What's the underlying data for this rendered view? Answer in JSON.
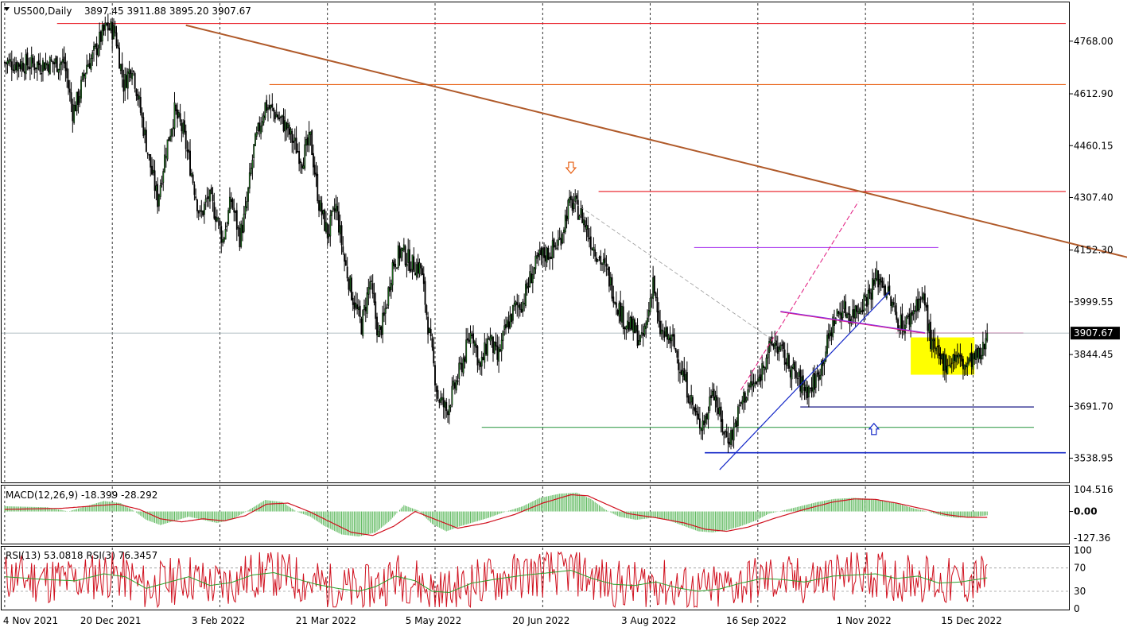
{
  "header": {
    "symbol": "US500,Daily",
    "ohlc": "3897.45 3911.88 3895.20 3907.67"
  },
  "chart_data": {
    "type": "candlestick",
    "x_ticks": [
      "4 Nov 2021",
      "20 Dec 2021",
      "3 Feb 2022",
      "21 Mar 2022",
      "5 May 2022",
      "20 Jun 2022",
      "3 Aug 2022",
      "16 Sep 2022",
      "1 Nov 2022",
      "15 Dec 2022"
    ],
    "price_axis": {
      "ticks": [
        4768.0,
        4612.9,
        4460.15,
        4307.4,
        4152.3,
        3999.55,
        3844.45,
        3691.7,
        3538.95
      ],
      "tick_labels": [
        "4768.00",
        "4612.90",
        "4460.15",
        "4307.40",
        "4152.30",
        "3999.55",
        "3844.45",
        "3691.70",
        "3538.95"
      ],
      "range": [
        3470,
        4880
      ],
      "current_label": "3907.67",
      "current_value": 3907.67
    },
    "price_key_points": [
      [
        0,
        4705
      ],
      [
        20,
        4700
      ],
      [
        42,
        4705
      ],
      [
        48,
        4560
      ],
      [
        52,
        4600
      ],
      [
        58,
        4700
      ],
      [
        62,
        4720
      ],
      [
        68,
        4780
      ],
      [
        72,
        4810
      ],
      [
        78,
        4795
      ],
      [
        84,
        4640
      ],
      [
        90,
        4700
      ],
      [
        96,
        4560
      ],
      [
        102,
        4420
      ],
      [
        108,
        4300
      ],
      [
        114,
        4450
      ],
      [
        120,
        4560
      ],
      [
        126,
        4500
      ],
      [
        132,
        4380
      ],
      [
        138,
        4250
      ],
      [
        144,
        4310
      ],
      [
        150,
        4250
      ],
      [
        154,
        4180
      ],
      [
        160,
        4300
      ],
      [
        166,
        4190
      ],
      [
        170,
        4260
      ],
      [
        176,
        4450
      ],
      [
        184,
        4580
      ],
      [
        190,
        4560
      ],
      [
        198,
        4520
      ],
      [
        204,
        4470
      ],
      [
        210,
        4420
      ],
      [
        216,
        4480
      ],
      [
        222,
        4290
      ],
      [
        228,
        4200
      ],
      [
        234,
        4280
      ],
      [
        240,
        4120
      ],
      [
        246,
        4010
      ],
      [
        252,
        3930
      ],
      [
        258,
        4060
      ],
      [
        264,
        3900
      ],
      [
        268,
        3950
      ],
      [
        274,
        4110
      ],
      [
        280,
        4150
      ],
      [
        288,
        4110
      ],
      [
        294,
        4100
      ],
      [
        300,
        3900
      ],
      [
        306,
        3720
      ],
      [
        312,
        3680
      ],
      [
        318,
        3750
      ],
      [
        324,
        3830
      ],
      [
        330,
        3920
      ],
      [
        336,
        3800
      ],
      [
        342,
        3900
      ],
      [
        348,
        3830
      ],
      [
        354,
        3920
      ],
      [
        360,
        3980
      ],
      [
        366,
        4000
      ],
      [
        372,
        4080
      ],
      [
        378,
        4130
      ],
      [
        386,
        4150
      ],
      [
        392,
        4180
      ],
      [
        398,
        4280
      ],
      [
        402,
        4290
      ],
      [
        408,
        4250
      ],
      [
        414,
        4180
      ],
      [
        420,
        4130
      ],
      [
        426,
        4080
      ],
      [
        432,
        4000
      ],
      [
        438,
        3940
      ],
      [
        444,
        3920
      ],
      [
        450,
        3880
      ],
      [
        454,
        3950
      ],
      [
        458,
        4070
      ],
      [
        462,
        3920
      ],
      [
        466,
        3900
      ],
      [
        472,
        3880
      ],
      [
        478,
        3800
      ],
      [
        484,
        3720
      ],
      [
        490,
        3640
      ],
      [
        496,
        3660
      ],
      [
        500,
        3760
      ],
      [
        506,
        3640
      ],
      [
        510,
        3600
      ],
      [
        514,
        3610
      ],
      [
        520,
        3700
      ],
      [
        526,
        3750
      ],
      [
        532,
        3760
      ],
      [
        538,
        3850
      ],
      [
        544,
        3880
      ],
      [
        550,
        3840
      ],
      [
        556,
        3800
      ],
      [
        562,
        3760
      ],
      [
        568,
        3740
      ],
      [
        574,
        3780
      ],
      [
        580,
        3860
      ],
      [
        586,
        3950
      ],
      [
        592,
        3980
      ],
      [
        598,
        3960
      ],
      [
        604,
        3990
      ],
      [
        610,
        4020
      ],
      [
        616,
        4070
      ],
      [
        620,
        4060
      ],
      [
        626,
        4000
      ],
      [
        630,
        3950
      ],
      [
        636,
        3930
      ],
      [
        640,
        3960
      ],
      [
        646,
        4010
      ],
      [
        650,
        4000
      ],
      [
        654,
        3880
      ],
      [
        660,
        3830
      ],
      [
        666,
        3820
      ],
      [
        672,
        3840
      ],
      [
        678,
        3810
      ],
      [
        684,
        3830
      ],
      [
        690,
        3840
      ],
      [
        694,
        3907.67
      ]
    ],
    "indicators": {
      "macd": {
        "label": "MACD(12,26,9) -18.399 -28.292",
        "ticks": [
          104.516,
          0,
          -127.36
        ],
        "tick_labels": [
          "104.516",
          "0.00",
          "-127.36"
        ],
        "range": [
          -150,
          120
        ],
        "histogram_points": [
          [
            0,
            25
          ],
          [
            30,
            20
          ],
          [
            45,
            0
          ],
          [
            55,
            20
          ],
          [
            70,
            50
          ],
          [
            82,
            40
          ],
          [
            92,
            0
          ],
          [
            100,
            -40
          ],
          [
            110,
            -65
          ],
          [
            120,
            -45
          ],
          [
            130,
            -25
          ],
          [
            140,
            -40
          ],
          [
            150,
            -55
          ],
          [
            160,
            -40
          ],
          [
            172,
            5
          ],
          [
            184,
            55
          ],
          [
            196,
            45
          ],
          [
            206,
            0
          ],
          [
            216,
            -25
          ],
          [
            226,
            -70
          ],
          [
            238,
            -110
          ],
          [
            250,
            -120
          ],
          [
            262,
            -100
          ],
          [
            272,
            -45
          ],
          [
            282,
            30
          ],
          [
            292,
            5
          ],
          [
            302,
            -60
          ],
          [
            312,
            -95
          ],
          [
            322,
            -70
          ],
          [
            332,
            -50
          ],
          [
            342,
            -30
          ],
          [
            352,
            -5
          ],
          [
            366,
            25
          ],
          [
            378,
            65
          ],
          [
            392,
            85
          ],
          [
            404,
            90
          ],
          [
            414,
            60
          ],
          [
            424,
            10
          ],
          [
            434,
            -25
          ],
          [
            446,
            -40
          ],
          [
            458,
            -30
          ],
          [
            468,
            -40
          ],
          [
            480,
            -70
          ],
          [
            490,
            -95
          ],
          [
            500,
            -100
          ],
          [
            510,
            -90
          ],
          [
            520,
            -70
          ],
          [
            530,
            -45
          ],
          [
            540,
            -10
          ],
          [
            550,
            5
          ],
          [
            562,
            25
          ],
          [
            574,
            45
          ],
          [
            586,
            60
          ],
          [
            600,
            65
          ],
          [
            612,
            60
          ],
          [
            622,
            50
          ],
          [
            632,
            35
          ],
          [
            642,
            15
          ],
          [
            652,
            0
          ],
          [
            662,
            -20
          ],
          [
            672,
            -30
          ],
          [
            682,
            -28
          ],
          [
            694,
            -18.399
          ]
        ],
        "signal_points": [
          [
            0,
            10
          ],
          [
            40,
            15
          ],
          [
            60,
            25
          ],
          [
            80,
            35
          ],
          [
            95,
            10
          ],
          [
            110,
            -35
          ],
          [
            125,
            -50
          ],
          [
            140,
            -35
          ],
          [
            155,
            -45
          ],
          [
            170,
            -20
          ],
          [
            185,
            35
          ],
          [
            200,
            40
          ],
          [
            215,
            0
          ],
          [
            230,
            -50
          ],
          [
            245,
            -100
          ],
          [
            260,
            -115
          ],
          [
            275,
            -70
          ],
          [
            290,
            0
          ],
          [
            305,
            -40
          ],
          [
            320,
            -80
          ],
          [
            340,
            -55
          ],
          [
            360,
            -15
          ],
          [
            380,
            40
          ],
          [
            400,
            80
          ],
          [
            412,
            75
          ],
          [
            425,
            35
          ],
          [
            440,
            -10
          ],
          [
            460,
            -30
          ],
          [
            480,
            -55
          ],
          [
            495,
            -85
          ],
          [
            510,
            -95
          ],
          [
            525,
            -75
          ],
          [
            545,
            -30
          ],
          [
            565,
            10
          ],
          [
            585,
            45
          ],
          [
            600,
            60
          ],
          [
            615,
            58
          ],
          [
            630,
            40
          ],
          [
            650,
            10
          ],
          [
            665,
            -15
          ],
          [
            680,
            -28
          ],
          [
            694,
            -28.292
          ]
        ]
      },
      "rsi": {
        "label": "RSI(13) 53.0818 RSI(3) 76.3457",
        "ticks": [
          100,
          70,
          30,
          0
        ],
        "tick_labels": [
          "100",
          "70",
          "30",
          "0"
        ],
        "range": [
          0,
          105
        ],
        "rsi13_key_points": [
          [
            0,
            55
          ],
          [
            30,
            50
          ],
          [
            50,
            48
          ],
          [
            70,
            60
          ],
          [
            85,
            55
          ],
          [
            100,
            35
          ],
          [
            115,
            45
          ],
          [
            130,
            55
          ],
          [
            145,
            40
          ],
          [
            160,
            45
          ],
          [
            175,
            58
          ],
          [
            190,
            62
          ],
          [
            205,
            52
          ],
          [
            220,
            42
          ],
          [
            235,
            35
          ],
          [
            250,
            30
          ],
          [
            262,
            38
          ],
          [
            276,
            56
          ],
          [
            290,
            48
          ],
          [
            302,
            30
          ],
          [
            314,
            28
          ],
          [
            330,
            44
          ],
          [
            350,
            52
          ],
          [
            368,
            58
          ],
          [
            385,
            62
          ],
          [
            400,
            66
          ],
          [
            415,
            52
          ],
          [
            430,
            42
          ],
          [
            445,
            40
          ],
          [
            460,
            46
          ],
          [
            475,
            36
          ],
          [
            490,
            30
          ],
          [
            505,
            34
          ],
          [
            520,
            44
          ],
          [
            535,
            52
          ],
          [
            550,
            50
          ],
          [
            565,
            46
          ],
          [
            585,
            56
          ],
          [
            600,
            58
          ],
          [
            615,
            60
          ],
          [
            630,
            52
          ],
          [
            645,
            56
          ],
          [
            660,
            44
          ],
          [
            675,
            46
          ],
          [
            694,
            53.0818
          ]
        ]
      },
      "rsi3_label_value": 76.3457
    },
    "overlays": {
      "horizontal_levels": [
        {
          "price": 4820,
          "color": "#e8141e",
          "from": 0.05,
          "to": 1.0
        },
        {
          "price": 4640,
          "color": "#e86014",
          "from": 0.25,
          "to": 1.0
        },
        {
          "price": 4325,
          "color": "#e8141e",
          "from": 0.56,
          "to": 1.0
        },
        {
          "price": 4160,
          "color": "#b34ff0",
          "from": 0.65,
          "to": 0.88
        },
        {
          "price": 3907.67,
          "color": "#e0147c",
          "from": 0.84,
          "to": 0.96
        },
        {
          "price": 3690,
          "color": "#00007a",
          "from": 0.75,
          "to": 0.97
        },
        {
          "price": 3630,
          "color": "#3ca050",
          "from": 0.45,
          "to": 0.97
        },
        {
          "price": 3555,
          "color": "#1428c8",
          "from": 0.66,
          "to": 1.0
        }
      ],
      "trendline": {
        "color": "#b05a2a",
        "p1": [
          128,
          4815
        ],
        "p2": [
          940,
          3980
        ]
      },
      "arrows": [
        {
          "type": "down",
          "color": "#e86014",
          "at": [
            400,
            4395
          ]
        },
        {
          "type": "up",
          "color": "#1428c8",
          "at": [
            614,
            3625
          ]
        }
      ],
      "highlight_box": {
        "color": "#ffff00",
        "x_range": [
          640,
          685
        ],
        "price_range": [
          3785,
          3895
        ]
      }
    }
  }
}
